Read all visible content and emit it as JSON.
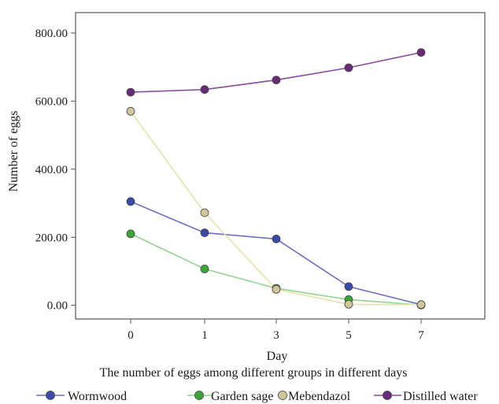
{
  "chart_data": {
    "type": "line",
    "title": "The number of eggs among different groups in different days",
    "xlabel": "Day",
    "ylabel": "Number of eggs",
    "categories": [
      "0",
      "1",
      "3",
      "5",
      "7"
    ],
    "ylim": [
      -40,
      860
    ],
    "yticks": [
      "0.00",
      "200.00",
      "400.00",
      "600.00",
      "800.00"
    ],
    "yticks_values": [
      0,
      200,
      400,
      600,
      800
    ],
    "grid": false,
    "legend_position": "bottom",
    "series": [
      {
        "name": "Wormwood",
        "color": "#6f6fc4",
        "marker": "#3a4aa8",
        "values": [
          305,
          213,
          195,
          55,
          2
        ]
      },
      {
        "name": "Garden sage",
        "color": "#8fd68f",
        "marker": "#3aa63a",
        "values": [
          210,
          107,
          50,
          17,
          1
        ]
      },
      {
        "name": "Mebendazol",
        "color": "#e8e2a8",
        "marker": "#cfc79a",
        "values": [
          570,
          272,
          47,
          3,
          2
        ]
      },
      {
        "name": "Distilled water",
        "color": "#8a4a9a",
        "marker": "#6a2a7a",
        "values": [
          626,
          634,
          662,
          698,
          743
        ]
      }
    ]
  }
}
